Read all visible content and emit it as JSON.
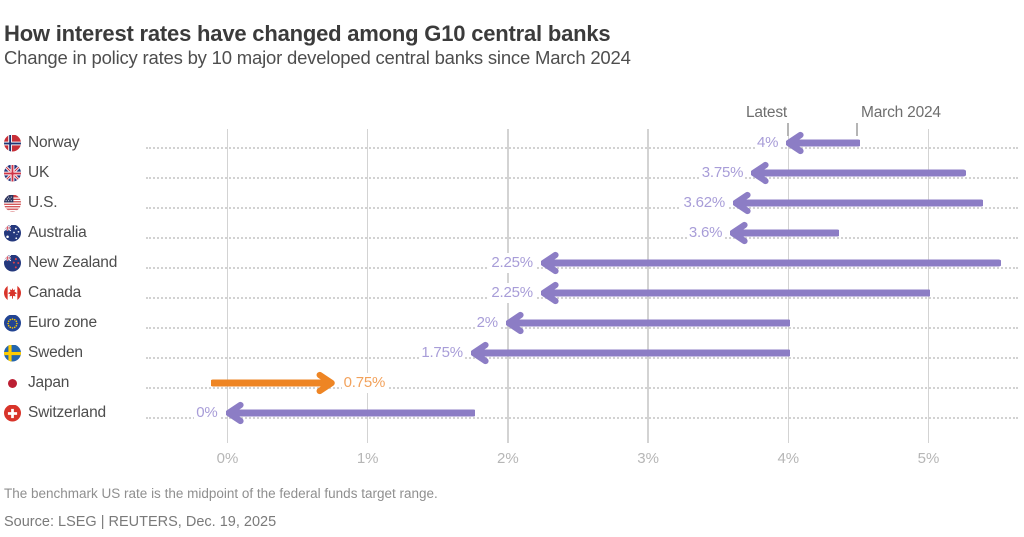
{
  "header": {
    "title": "How interest rates have changed among G10 central banks",
    "subtitle": "Change in policy rates by 10 major developed central banks since March 2024"
  },
  "chart_data": {
    "type": "bar",
    "variant": "arrow-dumbbell",
    "unit": "%",
    "column_headers": {
      "latest": "Latest",
      "start": "March 2024"
    },
    "x_axis": {
      "ticks": [
        "0%",
        "1%",
        "2%",
        "3%",
        "4%",
        "5%"
      ],
      "tick_values": [
        0,
        1,
        2,
        3,
        4,
        5
      ],
      "min": 0,
      "max": 5.5,
      "grid": true
    },
    "rows": [
      {
        "country": "Norway",
        "flag": "norway",
        "latest": 4,
        "latest_label": "4%",
        "march_2024": 4.5,
        "direction": "decrease"
      },
      {
        "country": "UK",
        "flag": "uk",
        "latest": 3.75,
        "latest_label": "3.75%",
        "march_2024": 5.25,
        "direction": "decrease"
      },
      {
        "country": "U.S.",
        "flag": "us",
        "latest": 3.62,
        "latest_label": "3.62%",
        "march_2024": 5.375,
        "direction": "decrease"
      },
      {
        "country": "Australia",
        "flag": "australia",
        "latest": 3.6,
        "latest_label": "3.6%",
        "march_2024": 4.35,
        "direction": "decrease"
      },
      {
        "country": "New Zealand",
        "flag": "new-zealand",
        "latest": 2.25,
        "latest_label": "2.25%",
        "march_2024": 5.5,
        "direction": "decrease"
      },
      {
        "country": "Canada",
        "flag": "canada",
        "latest": 2.25,
        "latest_label": "2.25%",
        "march_2024": 5.0,
        "direction": "decrease"
      },
      {
        "country": "Euro zone",
        "flag": "eurozone",
        "latest": 2,
        "latest_label": "2%",
        "march_2024": 4.0,
        "direction": "decrease"
      },
      {
        "country": "Sweden",
        "flag": "sweden",
        "latest": 1.75,
        "latest_label": "1.75%",
        "march_2024": 4.0,
        "direction": "decrease"
      },
      {
        "country": "Japan",
        "flag": "japan",
        "latest": 0.75,
        "latest_label": "0.75%",
        "march_2024": -0.1,
        "direction": "increase"
      },
      {
        "country": "Switzerland",
        "flag": "switzerland",
        "latest": 0,
        "latest_label": "0%",
        "march_2024": 1.75,
        "direction": "decrease"
      }
    ],
    "colors": {
      "decrease_arrow": "#8c7dc5",
      "decrease_label": "#a89dd8",
      "increase_arrow": "#ee8524",
      "increase_label": "#f2a25c"
    },
    "legend_position": "top-right-inline"
  },
  "footnote": "The benchmark US rate is the midpoint of the federal funds target range.",
  "source": "Source: LSEG | REUTERS, Dec. 19, 2025"
}
